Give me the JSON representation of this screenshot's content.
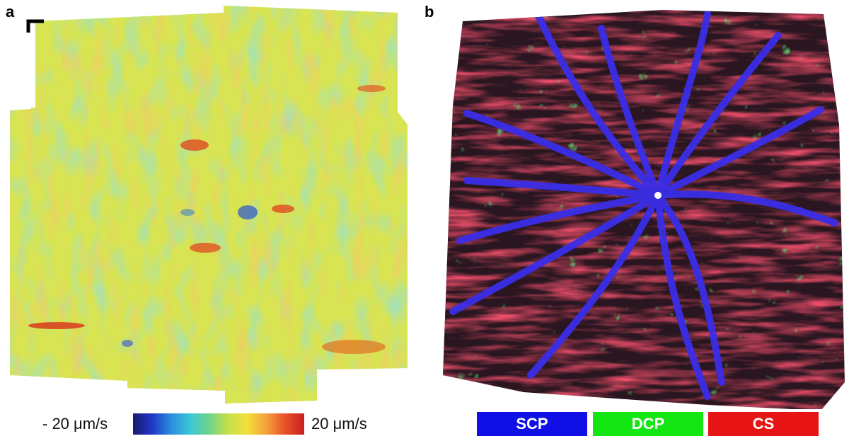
{
  "panels": {
    "a": {
      "letter": "a"
    },
    "b": {
      "letter": "b"
    }
  },
  "colorbar": {
    "min_label": "- 20 μm/s",
    "max_label": "20 μm/s"
  },
  "legend": {
    "scp": {
      "label": "SCP",
      "color": "#1010e6"
    },
    "dcp": {
      "label": "DCP",
      "color": "#14e614"
    },
    "cs": {
      "label": "CS",
      "color": "#e61414"
    }
  }
}
